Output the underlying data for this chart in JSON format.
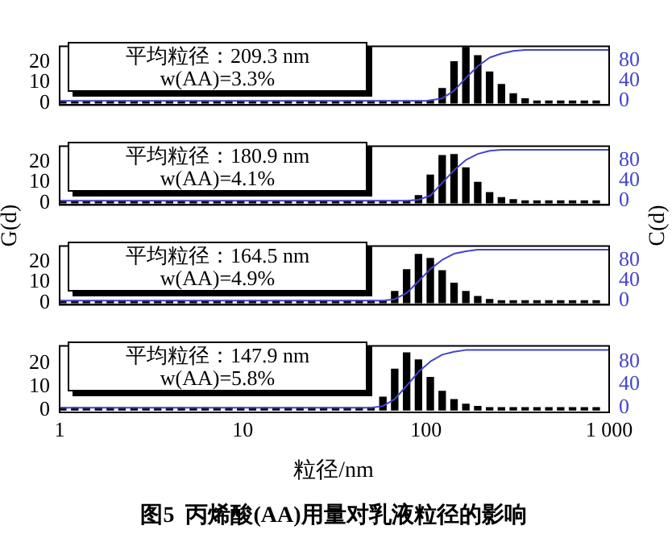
{
  "chart_data": [
    {
      "type": "bar",
      "title": "图5  丙烯酸(AA)用量对乳液粒径的影响",
      "ylabel": "G(d)",
      "y2label": "C(d)",
      "log": "x",
      "tick_labels": "y",
      "x": [
        1.04,
        1.21,
        1.4,
        1.63,
        1.89,
        2.19,
        2.55,
        2.96,
        3.43,
        3.98,
        4.62,
        5.37,
        6.23,
        7.23,
        8.39,
        9.74,
        11.3,
        13.1,
        15.2,
        17.7,
        20.5,
        23.8,
        27.6,
        32.1,
        37.2,
        43.2,
        50.1,
        58.2,
        67.5,
        78.4,
        91.0,
        105.6,
        122.6,
        142.3,
        165.1,
        191.7,
        222.5,
        258.2,
        299.7,
        347.8,
        403.6,
        468.5,
        543.7,
        631.1,
        732.5,
        850.2
      ],
      "xlim": [
        1,
        1000
      ],
      "ylim": [
        -1,
        27.5
      ],
      "yticks": [
        0,
        10,
        20
      ],
      "y2lim": [
        -8,
        107
      ],
      "y2ticks": [
        0,
        40,
        80
      ],
      "annotations": [
        "平均粒径：209.3 nm",
        "w(AA)=3.3%"
      ],
      "series": [
        {
          "color": "#000000",
          "values": [
            1,
            1,
            1,
            1,
            1,
            1,
            1,
            1,
            1,
            1,
            1,
            1,
            1,
            1,
            1,
            1,
            1,
            1,
            1,
            1,
            1,
            1,
            1,
            1,
            1,
            1,
            1,
            1,
            1,
            1,
            1,
            1,
            7,
            20,
            27,
            23,
            15,
            9,
            4.5,
            2,
            1,
            1,
            1,
            1,
            1,
            1
          ]
        },
        {
          "type": "line",
          "axis": "y2",
          "color": "#4444cc",
          "x": [
            1,
            100,
            122.6,
            142.3,
            165.1,
            191.7,
            222.5,
            258.2,
            299.7,
            347.8,
            1000
          ],
          "values": [
            0,
            0,
            5,
            20,
            45,
            68,
            85,
            93,
            98,
            100,
            100
          ]
        }
      ]
    },
    {
      "type": "bar",
      "log": "x",
      "tick_labels": "y",
      "x": [
        1.04,
        1.21,
        1.4,
        1.63,
        1.89,
        2.19,
        2.55,
        2.96,
        3.43,
        3.98,
        4.62,
        5.37,
        6.23,
        7.23,
        8.39,
        9.74,
        11.3,
        13.1,
        15.2,
        17.7,
        20.5,
        23.8,
        27.6,
        32.1,
        37.2,
        43.2,
        50.1,
        58.2,
        67.5,
        78.4,
        91.0,
        105.6,
        122.6,
        142.3,
        165.1,
        191.7,
        222.5,
        258.2,
        299.7,
        347.8,
        403.6,
        468.5,
        543.7,
        631.1,
        732.5,
        850.2
      ],
      "xlim": [
        1,
        1000
      ],
      "ylim": [
        -1,
        27.5
      ],
      "yticks": [
        0,
        10,
        20
      ],
      "y2lim": [
        -8,
        107
      ],
      "y2ticks": [
        0,
        40,
        80
      ],
      "annotations": [
        "平均粒径：180.9 nm",
        "w(AA)=4.1%"
      ],
      "series": [
        {
          "color": "#000000",
          "values": [
            1,
            1,
            1,
            1,
            1,
            1,
            1,
            1,
            1,
            1,
            1,
            1,
            1,
            1,
            1,
            1,
            1,
            1,
            1,
            1,
            1,
            1,
            1,
            1,
            1,
            1,
            1,
            1,
            1,
            1,
            3.5,
            13.5,
            23,
            23.5,
            17,
            10,
            5,
            2.5,
            1.5,
            1,
            1,
            1,
            1,
            1,
            1,
            1
          ]
        },
        {
          "type": "line",
          "axis": "y2",
          "color": "#4444cc",
          "x": [
            1,
            78.4,
            91.0,
            105.6,
            122.6,
            142.3,
            165.1,
            191.7,
            222.5,
            258.2,
            1000
          ],
          "values": [
            0,
            0,
            2,
            10,
            35,
            60,
            80,
            92,
            98,
            100,
            100
          ]
        }
      ]
    },
    {
      "type": "bar",
      "log": "x",
      "tick_labels": "y",
      "x": [
        1.04,
        1.21,
        1.4,
        1.63,
        1.89,
        2.19,
        2.55,
        2.96,
        3.43,
        3.98,
        4.62,
        5.37,
        6.23,
        7.23,
        8.39,
        9.74,
        11.3,
        13.1,
        15.2,
        17.7,
        20.5,
        23.8,
        27.6,
        32.1,
        37.2,
        43.2,
        50.1,
        58.2,
        67.5,
        78.4,
        91.0,
        105.6,
        122.6,
        142.3,
        165.1,
        191.7,
        222.5,
        258.2,
        299.7,
        347.8,
        403.6,
        468.5,
        543.7,
        631.1,
        732.5,
        850.2
      ],
      "xlim": [
        1,
        1000
      ],
      "ylim": [
        -1,
        27.5
      ],
      "yticks": [
        0,
        10,
        20
      ],
      "y2lim": [
        -8,
        107
      ],
      "y2ticks": [
        0,
        40,
        80
      ],
      "annotations": [
        "平均粒径：164.5 nm",
        "w(AA)=4.9%"
      ],
      "series": [
        {
          "color": "#000000",
          "values": [
            1,
            1,
            1,
            1,
            1,
            1,
            1,
            1,
            1,
            1,
            1,
            1,
            1,
            1,
            1,
            1,
            1,
            1,
            1,
            1,
            1,
            1,
            1,
            1,
            1,
            1,
            1,
            1,
            5.5,
            16,
            23.5,
            21.5,
            15.5,
            9.5,
            5.5,
            3,
            1.5,
            1,
            1,
            1,
            1,
            1,
            1,
            1,
            1,
            1
          ]
        },
        {
          "type": "line",
          "axis": "y2",
          "color": "#4444cc",
          "x": [
            1,
            58.2,
            67.5,
            78.4,
            91.0,
            105.6,
            122.6,
            142.3,
            165.1,
            191.7,
            1000
          ],
          "values": [
            0,
            0,
            3,
            15,
            38,
            62,
            80,
            92,
            97,
            100,
            100
          ]
        }
      ]
    },
    {
      "type": "bar",
      "xlabel": "粒径/nm",
      "log": "x",
      "x": [
        1.04,
        1.21,
        1.4,
        1.63,
        1.89,
        2.19,
        2.55,
        2.96,
        3.43,
        3.98,
        4.62,
        5.37,
        6.23,
        7.23,
        8.39,
        9.74,
        11.3,
        13.1,
        15.2,
        17.7,
        20.5,
        23.8,
        27.6,
        32.1,
        37.2,
        43.2,
        50.1,
        58.2,
        67.5,
        78.4,
        91.0,
        105.6,
        122.6,
        142.3,
        165.1,
        191.7,
        222.5,
        258.2,
        299.7,
        347.8,
        403.6,
        468.5,
        543.7,
        631.1,
        732.5,
        850.2
      ],
      "xlim": [
        1,
        1000
      ],
      "xticks": [
        1,
        10,
        100,
        {
          "value": 1000,
          "label": "1 000"
        }
      ],
      "ylim": [
        -1,
        27.5
      ],
      "yticks": [
        0,
        10,
        20
      ],
      "y2lim": [
        -8,
        107
      ],
      "y2ticks": [
        0,
        40,
        80
      ],
      "annotations": [
        "平均粒径：147.9 nm",
        "w(AA)=5.8%"
      ],
      "series": [
        {
          "color": "#000000",
          "values": [
            1,
            1,
            1,
            1,
            1,
            1,
            1,
            1,
            1,
            1,
            1,
            1,
            1,
            1,
            1,
            1,
            1,
            1,
            1,
            1,
            1,
            1,
            1,
            1,
            1,
            1,
            1,
            5.5,
            17.5,
            24.5,
            21.5,
            14,
            8,
            4.5,
            2.5,
            1.5,
            1,
            1,
            1,
            1,
            1,
            1,
            1,
            1,
            1,
            1
          ]
        },
        {
          "type": "line",
          "axis": "y2",
          "color": "#4444cc",
          "x": [
            1,
            50.1,
            58.2,
            67.5,
            78.4,
            91.0,
            105.6,
            122.6,
            142.3,
            165.1,
            1000
          ],
          "values": [
            0,
            0,
            3,
            15,
            38,
            62,
            80,
            92,
            97,
            100,
            100
          ]
        }
      ]
    }
  ]
}
